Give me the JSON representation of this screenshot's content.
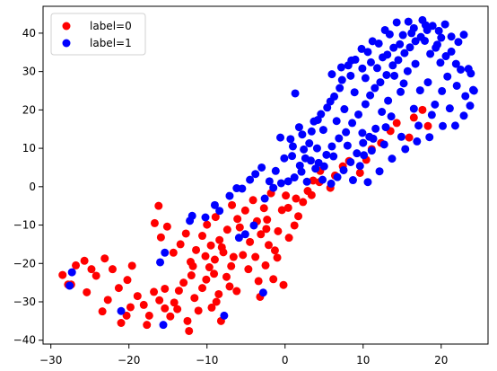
{
  "chart_data": {
    "type": "scatter",
    "title": "",
    "xlabel": "",
    "ylabel": "",
    "xlim": [
      -31,
      26
    ],
    "ylim": [
      -41,
      47
    ],
    "xticks": [
      -30,
      -20,
      -10,
      0,
      10,
      20
    ],
    "yticks": [
      -40,
      -30,
      -20,
      -10,
      0,
      10,
      20,
      30,
      40
    ],
    "grid": false,
    "legend_position": "top-left",
    "series": [
      {
        "name": "label=0",
        "color": "#ff0000",
        "points": [
          [
            -28.5,
            -23
          ],
          [
            -27.4,
            -25.5
          ],
          [
            -26.8,
            -20.5
          ],
          [
            -25.7,
            -19.3
          ],
          [
            -25.4,
            -27.5
          ],
          [
            -24.2,
            -23.2
          ],
          [
            -24.8,
            -21.5
          ],
          [
            -23.1,
            -18.7
          ],
          [
            -22.1,
            -21.5
          ],
          [
            -21.3,
            -26.4
          ],
          [
            -20.2,
            -24.3
          ],
          [
            -19.6,
            -20.6
          ],
          [
            -18.9,
            -28.5
          ],
          [
            -18.1,
            -30.8
          ],
          [
            -17.4,
            -33.6
          ],
          [
            -16.8,
            -27.4
          ],
          [
            -16.1,
            -29.6
          ],
          [
            -15.4,
            -31.7
          ],
          [
            -14.7,
            -33.8
          ],
          [
            -14.2,
            -30.2
          ],
          [
            -13.6,
            -27.1
          ],
          [
            -13.0,
            -25.0
          ],
          [
            -12.5,
            -35.0
          ],
          [
            -12.0,
            -23.1
          ],
          [
            -11.6,
            -29.0
          ],
          [
            -11.1,
            -32.3
          ],
          [
            -10.6,
            -26.4
          ],
          [
            -10.1,
            -24.2
          ],
          [
            -9.7,
            -21.0
          ],
          [
            -9.4,
            -31.5
          ],
          [
            -9.0,
            -19.0
          ],
          [
            -8.5,
            -28.0
          ],
          [
            -8.2,
            -35.0
          ],
          [
            -7.5,
            -23.5
          ],
          [
            -7.1,
            -26.0
          ],
          [
            -6.6,
            -18.3
          ],
          [
            -15.9,
            -13.2
          ],
          [
            -16.7,
            -9.5
          ],
          [
            -16.2,
            -5.0
          ],
          [
            -15.1,
            -10.4
          ],
          [
            -14.3,
            -17.2
          ],
          [
            -13.4,
            -15.0
          ],
          [
            -12.7,
            -12.2
          ],
          [
            -12.1,
            -19.6
          ],
          [
            -11.4,
            -16.5
          ],
          [
            -10.6,
            -12.8
          ],
          [
            -10.0,
            -9.9
          ],
          [
            -9.5,
            -15.3
          ],
          [
            -8.9,
            -7.9
          ],
          [
            -8.4,
            -13.9
          ],
          [
            -7.9,
            -17.1
          ],
          [
            -7.4,
            -11.2
          ],
          [
            -6.8,
            -4.8
          ],
          [
            -6.1,
            -8.4
          ],
          [
            -5.8,
            -10.6
          ],
          [
            -5.1,
            -6.2
          ],
          [
            -4.5,
            -14.4
          ],
          [
            -4.1,
            -3.5
          ],
          [
            -3.6,
            -9.0
          ],
          [
            -3.1,
            -12.4
          ],
          [
            -2.7,
            -5.6
          ],
          [
            -2.3,
            -8.6
          ],
          [
            -1.8,
            -1.7
          ],
          [
            -1.3,
            -16.6
          ],
          [
            -0.9,
            -11.6
          ],
          [
            -0.4,
            -6.1
          ],
          [
            0.1,
            -2.3
          ],
          [
            -0.2,
            -25.6
          ],
          [
            -1.5,
            -24.1
          ],
          [
            -2.5,
            -20.5
          ],
          [
            -3.8,
            -18.3
          ],
          [
            0.5,
            -13.3
          ],
          [
            1.2,
            -10.1
          ],
          [
            1.7,
            -7.7
          ],
          [
            2.3,
            -4.0
          ],
          [
            2.9,
            -1.1
          ],
          [
            3.6,
            1.6
          ],
          [
            4.5,
            4.1
          ],
          [
            5.8,
            -0.3
          ],
          [
            6.4,
            2.9
          ],
          [
            7.4,
            5.3
          ],
          [
            8.2,
            6.7
          ],
          [
            9.6,
            3.6
          ],
          [
            10.4,
            7.0
          ],
          [
            11.1,
            9.8
          ],
          [
            12.3,
            11.4
          ],
          [
            13.5,
            14.5
          ],
          [
            14.3,
            16.6
          ],
          [
            15.9,
            12.8
          ],
          [
            16.5,
            18.0
          ],
          [
            17.6,
            20.0
          ],
          [
            18.3,
            15.8
          ],
          [
            -20.3,
            -33.6
          ],
          [
            -17.7,
            -36.0
          ],
          [
            -19.8,
            -31.4
          ],
          [
            -13.8,
            -31.9
          ],
          [
            -15.4,
            -26.6
          ],
          [
            -11.8,
            -20.7
          ],
          [
            -10.2,
            -18.1
          ],
          [
            -9.1,
            -22.7
          ],
          [
            -8.1,
            -15.8
          ],
          [
            -6.9,
            -20.7
          ],
          [
            -5.4,
            -17.8
          ],
          [
            -4.7,
            -21.5
          ],
          [
            -3.4,
            -24.6
          ],
          [
            -2.1,
            -15.2
          ],
          [
            -1.0,
            -18.5
          ],
          [
            0.4,
            -5.5
          ],
          [
            1.4,
            -3.1
          ],
          [
            3.4,
            -2.2
          ],
          [
            4.4,
            1.2
          ],
          [
            -27.8,
            -25.5
          ],
          [
            -22.7,
            -29.5
          ],
          [
            -23.4,
            -32.5
          ],
          [
            -21.0,
            -35.5
          ],
          [
            -12.3,
            -37.6
          ],
          [
            -8.8,
            -30.0
          ],
          [
            -6.2,
            -27.2
          ],
          [
            -3.2,
            -28.7
          ],
          [
            -2.4,
            -11.0
          ]
        ]
      },
      {
        "name": "label=1",
        "color": "#0000ff",
        "points": [
          [
            -27.3,
            -22.3
          ],
          [
            -27.6,
            -25.8
          ],
          [
            -21.0,
            -32.4
          ],
          [
            -15.6,
            -36.0
          ],
          [
            -16.0,
            -19.7
          ],
          [
            -15.4,
            -17.2
          ],
          [
            -11.9,
            -7.6
          ],
          [
            -12.2,
            -8.9
          ],
          [
            -10.2,
            -8.0
          ],
          [
            -9.0,
            -4.8
          ],
          [
            -8.4,
            -6.3
          ],
          [
            -7.1,
            -2.4
          ],
          [
            -6.2,
            -0.4
          ],
          [
            -5.5,
            -0.5
          ],
          [
            -4.5,
            1.8
          ],
          [
            -3.8,
            3.3
          ],
          [
            -3.0,
            5.0
          ],
          [
            -7.8,
            -33.6
          ],
          [
            -2.8,
            -27.6
          ],
          [
            -5.9,
            -13.3
          ],
          [
            -5.1,
            -12.4
          ],
          [
            -4.0,
            -10.1
          ],
          [
            -2.6,
            -3.1
          ],
          [
            -1.5,
            -0.3
          ],
          [
            -0.5,
            0.9
          ],
          [
            0.4,
            1.4
          ],
          [
            1.2,
            2.4
          ],
          [
            2.1,
            3.9
          ],
          [
            2.8,
            1.3
          ],
          [
            3.3,
            6.8
          ],
          [
            4.3,
            6.2
          ],
          [
            5.3,
            8.3
          ],
          [
            6.0,
            10.5
          ],
          [
            6.9,
            12.6
          ],
          [
            7.8,
            14.2
          ],
          [
            8.6,
            16.6
          ],
          [
            9.4,
            18.8
          ],
          [
            10.3,
            21.5
          ],
          [
            10.9,
            23.8
          ],
          [
            11.5,
            25.7
          ],
          [
            12.2,
            27.2
          ],
          [
            13.0,
            29.1
          ],
          [
            13.8,
            31.6
          ],
          [
            14.5,
            33.0
          ],
          [
            15.3,
            34.8
          ],
          [
            16.0,
            36.3
          ],
          [
            16.7,
            37.9
          ],
          [
            17.4,
            39.0
          ],
          [
            18.2,
            40.8
          ],
          [
            18.9,
            41.9
          ],
          [
            19.7,
            40.6
          ],
          [
            20.5,
            42.3
          ],
          [
            21.3,
            39.1
          ],
          [
            22.2,
            37.7
          ],
          [
            22.9,
            39.6
          ],
          [
            23.5,
            30.7
          ],
          [
            24.2,
            25.0
          ],
          [
            23.1,
            23.6
          ],
          [
            22.0,
            26.3
          ],
          [
            21.1,
            20.4
          ],
          [
            20.2,
            15.8
          ],
          [
            19.2,
            21.4
          ],
          [
            18.3,
            27.2
          ],
          [
            17.3,
            25.1
          ],
          [
            16.5,
            20.3
          ],
          [
            15.7,
            30.1
          ],
          [
            14.8,
            24.7
          ],
          [
            14.0,
            28.9
          ],
          [
            13.2,
            22.4
          ],
          [
            12.4,
            19.5
          ],
          [
            11.6,
            15.1
          ],
          [
            10.8,
            13.0
          ],
          [
            10.0,
            11.4
          ],
          [
            9.2,
            8.7
          ],
          [
            8.4,
            6.4
          ],
          [
            7.5,
            4.3
          ],
          [
            6.7,
            2.5
          ],
          [
            5.9,
            0.8
          ],
          [
            4.8,
            1.8
          ],
          [
            3.9,
            4.7
          ],
          [
            0.7,
            12.4
          ],
          [
            1.3,
            24.3
          ],
          [
            2.4,
            9.7
          ],
          [
            3.4,
            14.4
          ],
          [
            4.2,
            17.4
          ],
          [
            5.4,
            20.6
          ],
          [
            6.3,
            23.5
          ],
          [
            7.3,
            27.8
          ],
          [
            8.1,
            31.6
          ],
          [
            9.0,
            33.1
          ],
          [
            10.6,
            35.1
          ],
          [
            12.0,
            37.3
          ],
          [
            13.4,
            39.7
          ],
          [
            14.3,
            42.8
          ],
          [
            15.8,
            43.0
          ],
          [
            17.6,
            43.4
          ],
          [
            19.5,
            37.0
          ],
          [
            21.9,
            32.0
          ],
          [
            23.8,
            29.5
          ],
          [
            20.8,
            28.7
          ],
          [
            19.9,
            32.3
          ],
          [
            18.6,
            34.6
          ],
          [
            16.7,
            32.0
          ],
          [
            15.2,
            26.9
          ],
          [
            13.6,
            18.3
          ],
          [
            12.9,
            15.5
          ],
          [
            11.3,
            12.5
          ],
          [
            10.1,
            8.2
          ],
          [
            9.6,
            5.4
          ],
          [
            8.7,
            1.7
          ],
          [
            -0.6,
            12.8
          ],
          [
            0.9,
            8.0
          ],
          [
            1.9,
            5.5
          ],
          [
            3.1,
            11.3
          ],
          [
            4.9,
            14.8
          ],
          [
            6.6,
            17.1
          ],
          [
            7.6,
            20.2
          ],
          [
            8.9,
            24.6
          ],
          [
            10.3,
            28.3
          ],
          [
            11.8,
            30.9
          ],
          [
            13.1,
            34.4
          ],
          [
            14.7,
            37.1
          ],
          [
            16.2,
            40.0
          ],
          [
            17.9,
            38.0
          ],
          [
            19.3,
            36.2
          ],
          [
            20.6,
            34.0
          ],
          [
            22.5,
            30.5
          ],
          [
            20.1,
            24.9
          ],
          [
            18.8,
            18.7
          ],
          [
            17.1,
            15.9
          ],
          [
            14.9,
            13.0
          ],
          [
            12.7,
            11.0
          ],
          [
            11.1,
            9.4
          ],
          [
            9.9,
            14.0
          ],
          [
            8.0,
            10.7
          ],
          [
            6.2,
            7.9
          ],
          [
            5.0,
            5.3
          ],
          [
            4.1,
            10.0
          ],
          [
            2.6,
            7.4
          ],
          [
            1.8,
            15.5
          ],
          [
            10.6,
            1.2
          ],
          [
            12.1,
            4.0
          ],
          [
            13.7,
            7.3
          ],
          [
            15.4,
            9.8
          ],
          [
            16.9,
            11.8
          ],
          [
            18.5,
            12.9
          ],
          [
            21.8,
            15.9
          ],
          [
            22.9,
            18.5
          ],
          [
            23.7,
            21.1
          ],
          [
            24.1,
            25.2
          ],
          [
            21.3,
            35.2
          ],
          [
            20.0,
            38.8
          ],
          [
            18.0,
            42.1
          ],
          [
            16.5,
            41.3
          ],
          [
            15.1,
            39.5
          ],
          [
            13.9,
            36.2
          ],
          [
            12.5,
            33.7
          ],
          [
            11.0,
            32.4
          ],
          [
            9.9,
            30.8
          ],
          [
            8.4,
            28.9
          ],
          [
            7.0,
            25.7
          ],
          [
            5.8,
            22.2
          ],
          [
            4.6,
            18.9
          ],
          [
            3.7,
            17.0
          ],
          [
            2.2,
            13.6
          ],
          [
            1.0,
            10.5
          ],
          [
            -0.1,
            7.4
          ],
          [
            -1.2,
            4.1
          ],
          [
            -2.0,
            1.4
          ],
          [
            6.0,
            29.3
          ],
          [
            7.2,
            31.1
          ],
          [
            8.5,
            32.9
          ],
          [
            9.8,
            35.9
          ],
          [
            11.2,
            37.9
          ],
          [
            12.8,
            40.8
          ]
        ]
      }
    ]
  }
}
